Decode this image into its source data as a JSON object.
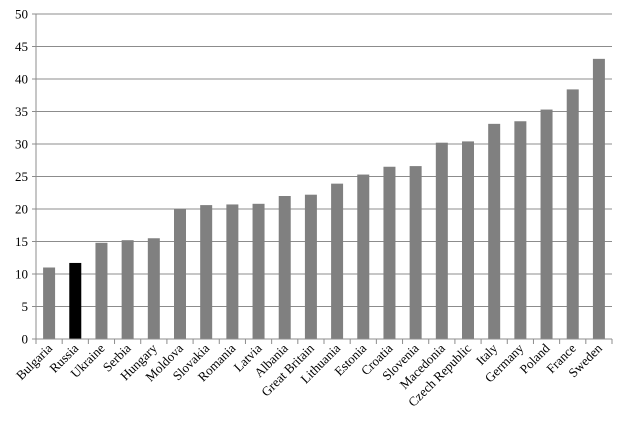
{
  "chart_data": {
    "type": "bar",
    "title": "",
    "xlabel": "",
    "ylabel": "",
    "ylim": [
      0,
      50
    ],
    "yticks": [
      0,
      5,
      10,
      15,
      20,
      25,
      30,
      35,
      40,
      45,
      50
    ],
    "grid": true,
    "legend": "none",
    "categories": [
      "Bulgaria",
      "Russia",
      "Ukraine",
      "Serbia",
      "Hungary",
      "Moldova",
      "Slovakia",
      "Romania",
      "Latvia",
      "Albania",
      "Great Britain",
      "Lithuania",
      "Estonia",
      "Croatia",
      "Slovenia",
      "Macedonia",
      "Czech Republic",
      "Italy",
      "Germany",
      "Poland",
      "France",
      "Sweden"
    ],
    "values": [
      11.0,
      11.7,
      14.8,
      15.2,
      15.5,
      20.0,
      20.6,
      20.7,
      20.8,
      22.0,
      22.2,
      23.9,
      25.3,
      26.5,
      26.6,
      30.2,
      30.4,
      33.1,
      33.5,
      35.3,
      38.4,
      43.1
    ],
    "colors": {
      "default": "#808080",
      "highlight": "#000000",
      "grid": "#8c8c8c"
    },
    "highlighted_category": "Russia"
  }
}
